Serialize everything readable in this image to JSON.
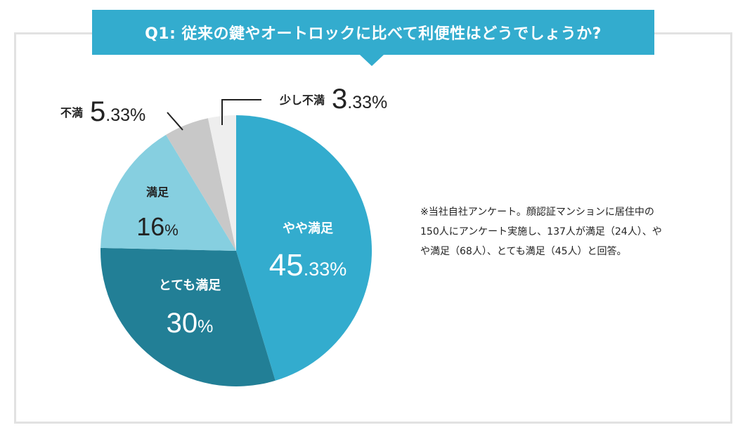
{
  "header": {
    "question": "Q1: 従来の鍵やオートロックに比べて利便性はどうでしょうか?"
  },
  "note": "※当社自社アンケート。顔認証マンションに居住中の150人にアンケート実施し、137人が満足（24人）、やや満足（68人）、とても満足（45人）と回答。",
  "chart_data": {
    "type": "pie",
    "title": "Q1: 従来の鍵やオートロックに比べて利便性はどうでしょうか?",
    "slices": [
      {
        "label": "やや満足",
        "num": "45",
        "dec": ".33",
        "unit": "%",
        "value": 45.33,
        "color": "#33acce"
      },
      {
        "label": "とても満足",
        "num": "30",
        "dec": "",
        "unit": "%",
        "value": 30,
        "color": "#227f96"
      },
      {
        "label": "満足",
        "num": "16",
        "dec": "",
        "unit": "%",
        "value": 16,
        "color": "#86cfe0"
      },
      {
        "label": "不満",
        "num": "5",
        "dec": ".33",
        "unit": "%",
        "value": 5.33,
        "color": "#c8c8c8"
      },
      {
        "label": "少し不満",
        "num": "3",
        "dec": ".33",
        "unit": "%",
        "value": 3.33,
        "color": "#eeeeee"
      }
    ],
    "start": "top, clockwise",
    "legend": "none"
  }
}
